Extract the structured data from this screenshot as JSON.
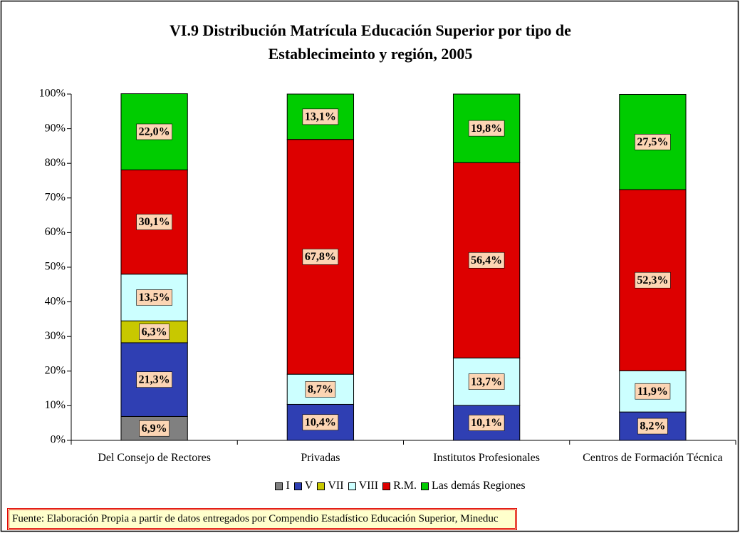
{
  "chart_data": {
    "type": "stacked_bar",
    "title": "VI.9 Distribución Matrícula Educación Superior por tipo de Establecimeinto y región, 2005",
    "categories": [
      "Del Consejo de Rectores",
      "Privadas",
      "Institutos Profesionales",
      "Centros de Formación Técnica"
    ],
    "series": [
      {
        "name": "I",
        "color": "#808080",
        "values": [
          6.9,
          null,
          null,
          null
        ],
        "value_labels": [
          "6,9%",
          null,
          null,
          null
        ]
      },
      {
        "name": "V",
        "color": "#2f3fb3",
        "values": [
          21.3,
          10.4,
          10.1,
          8.2
        ],
        "value_labels": [
          "21,3%",
          "10,4%",
          "10,1%",
          "8,2%"
        ]
      },
      {
        "name": "VII",
        "color": "#c8c800",
        "values": [
          6.3,
          null,
          null,
          null
        ],
        "value_labels": [
          "6,3%",
          null,
          null,
          null
        ]
      },
      {
        "name": "VIII",
        "color": "#ccffff",
        "values": [
          13.5,
          8.7,
          13.7,
          11.9
        ],
        "value_labels": [
          "13,5%",
          "8,7%",
          "13,7%",
          "11,9%"
        ]
      },
      {
        "name": "R.M.",
        "color": "#dd0000",
        "values": [
          30.1,
          67.8,
          56.4,
          52.3
        ],
        "value_labels": [
          "30,1%",
          "67,8%",
          "56,4%",
          "52,3%"
        ]
      },
      {
        "name": "Las demás Regiones",
        "color": "#00cc00",
        "values": [
          22.0,
          13.1,
          19.8,
          27.5
        ],
        "value_labels": [
          "22,0%",
          "13,1%",
          "19,8%",
          "27,5%"
        ]
      }
    ],
    "ylim": [
      0,
      100
    ],
    "yticks": [
      {
        "value": 0,
        "label": "0%"
      },
      {
        "value": 10,
        "label": "10%"
      },
      {
        "value": 20,
        "label": "20%"
      },
      {
        "value": 30,
        "label": "30%"
      },
      {
        "value": 40,
        "label": "40%"
      },
      {
        "value": 50,
        "label": "50%"
      },
      {
        "value": 60,
        "label": "60%"
      },
      {
        "value": 70,
        "label": "70%"
      },
      {
        "value": 80,
        "label": "80%"
      },
      {
        "value": 90,
        "label": "90%"
      },
      {
        "value": 100,
        "label": "100%"
      }
    ],
    "label_color": "#fcd5b4",
    "source": "Fuente: Elaboración Propia a partir de datos entregados por Compendio Estadístico Educación Superior, Mineduc"
  }
}
